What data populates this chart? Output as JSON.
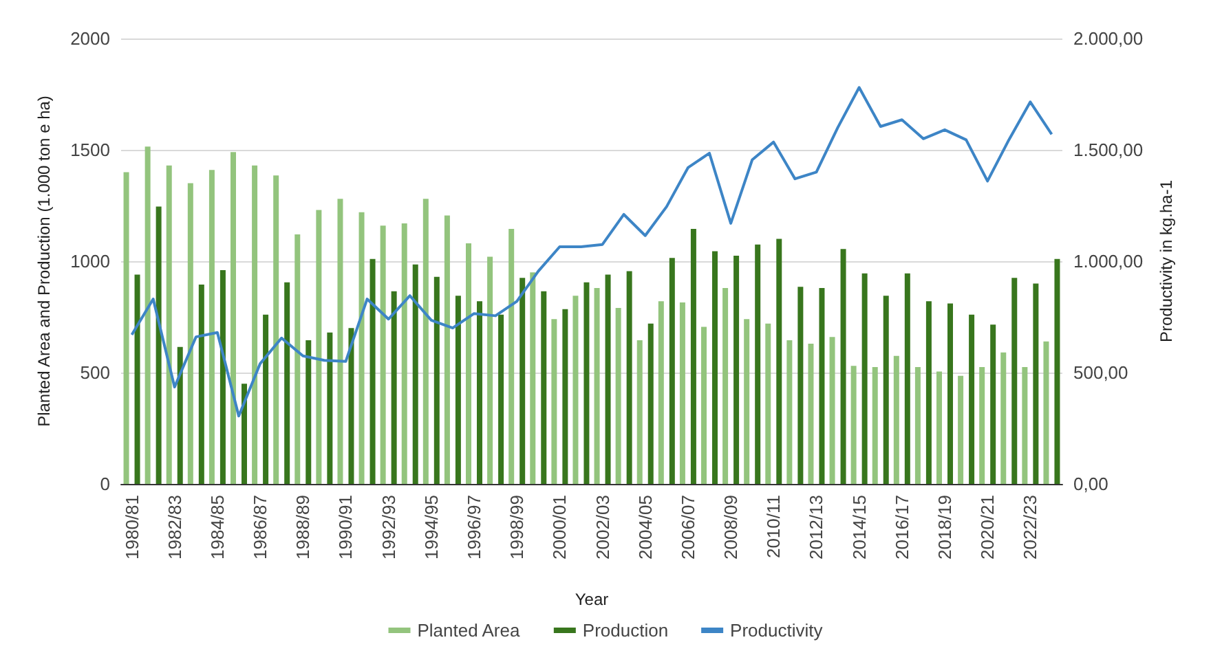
{
  "chart_data": {
    "type": "bar",
    "xlabel": "Year",
    "ylabel": "Planted Area and Production (1.000 ton e ha)",
    "y2label": "Productivity in kg.ha-1",
    "categories": [
      "1980/81",
      null,
      "1982/83",
      null,
      "1984/85",
      null,
      "1986/87",
      null,
      "1988/89",
      null,
      "1990/91",
      null,
      "1992/93",
      null,
      "1994/95",
      null,
      "1996/97",
      null,
      "1998/99",
      null,
      "2000/01",
      null,
      "2002/03",
      null,
      "2004/05",
      null,
      "2006/07",
      null,
      "2008/09",
      null,
      "2010/11",
      null,
      "2012/13",
      null,
      "2014/15",
      null,
      "2016/17",
      null,
      "2018/19",
      null,
      "2020/21",
      null,
      "2022/23",
      null
    ],
    "series": [
      {
        "name": "Planted Area",
        "color": "#93c47d",
        "values": [
          1400,
          1515,
          1430,
          1350,
          1410,
          1490,
          1430,
          1385,
          1120,
          1230,
          1280,
          1220,
          1160,
          1170,
          1280,
          1205,
          1080,
          1020,
          1145,
          950,
          740,
          845,
          880,
          790,
          645,
          820,
          815,
          705,
          880,
          740,
          720,
          645,
          630,
          660,
          530,
          525,
          575,
          525,
          505,
          485,
          525,
          590,
          525,
          640
        ]
      },
      {
        "name": "Production",
        "color": "#38761d",
        "values": [
          940,
          1245,
          615,
          895,
          960,
          450,
          760,
          905,
          645,
          680,
          700,
          1010,
          865,
          985,
          930,
          845,
          820,
          760,
          925,
          865,
          785,
          905,
          940,
          955,
          720,
          1015,
          1145,
          1045,
          1025,
          1075,
          1100,
          885,
          880,
          1055,
          945,
          845,
          945,
          820,
          810,
          760,
          715,
          925,
          900,
          1010
        ]
      },
      {
        "name": "Productivity",
        "type": "line",
        "axis": "y2",
        "color": "#3d85c6",
        "values": [
          670,
          830,
          435,
          660,
          680,
          305,
          540,
          655,
          575,
          555,
          550,
          830,
          740,
          845,
          735,
          700,
          765,
          755,
          820,
          955,
          1065,
          1065,
          1075,
          1210,
          1115,
          1245,
          1420,
          1485,
          1170,
          1455,
          1535,
          1370,
          1400,
          1600,
          1780,
          1605,
          1635,
          1550,
          1590,
          1545,
          1360,
          1545,
          1715,
          1570
        ]
      }
    ],
    "ylim": [
      0,
      2000
    ],
    "yticks": [
      0,
      500,
      1000,
      1500,
      2000
    ],
    "y2lim": [
      0,
      2000
    ],
    "y2ticks": [
      {
        "value": 0,
        "label": "0,00"
      },
      {
        "value": 500,
        "label": "500,00"
      },
      {
        "value": 1000,
        "label": "1.000,00"
      },
      {
        "value": 1500,
        "label": "1.500,00"
      },
      {
        "value": 2000,
        "label": "2.000,00"
      }
    ],
    "grid": "y",
    "legend": "bottom",
    "marker": "none"
  }
}
